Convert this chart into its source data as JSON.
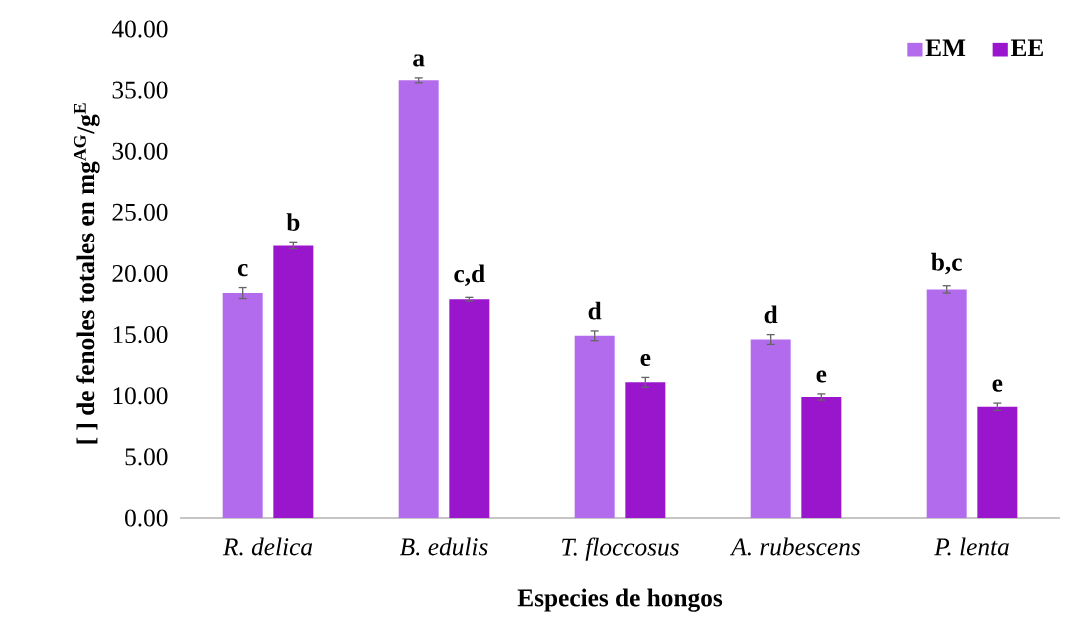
{
  "chart_data": {
    "type": "bar",
    "xlabel": "Especies de hongos",
    "ylabel": "[ ] de fenoles totales en mg$^{AG}$/g$^{E}$",
    "categories": [
      "R. delica",
      "B. edulis",
      "T. floccosus",
      "A. rubescens",
      "P. lenta"
    ],
    "series": [
      {
        "name": "EM",
        "color": "#b36bed",
        "values": [
          18.4,
          35.8,
          14.9,
          14.6,
          18.7
        ],
        "errors": [
          0.45,
          0.2,
          0.4,
          0.4,
          0.3
        ],
        "value_labels": [
          "c",
          "a",
          "d",
          "d",
          "b,c"
        ]
      },
      {
        "name": "EE",
        "color": "#9a16cc",
        "values": [
          22.3,
          17.9,
          11.1,
          9.9,
          9.1
        ],
        "errors": [
          0.25,
          0.15,
          0.4,
          0.25,
          0.3
        ],
        "value_labels": [
          "b",
          "c,d",
          "e",
          "e",
          "e"
        ]
      }
    ],
    "ylim": [
      0,
      40
    ],
    "yticks": [
      {
        "value": 0,
        "label": "0.00"
      },
      {
        "value": 5,
        "label": "5.00"
      },
      {
        "value": 10,
        "label": "10.00"
      },
      {
        "value": 15,
        "label": "15.00"
      },
      {
        "value": 20,
        "label": "20.00"
      },
      {
        "value": 25,
        "label": "25.00"
      },
      {
        "value": 30,
        "label": "30.00"
      },
      {
        "value": 35,
        "label": "35.00"
      },
      {
        "value": 40,
        "label": "40.00"
      }
    ],
    "legend": "top right"
  }
}
